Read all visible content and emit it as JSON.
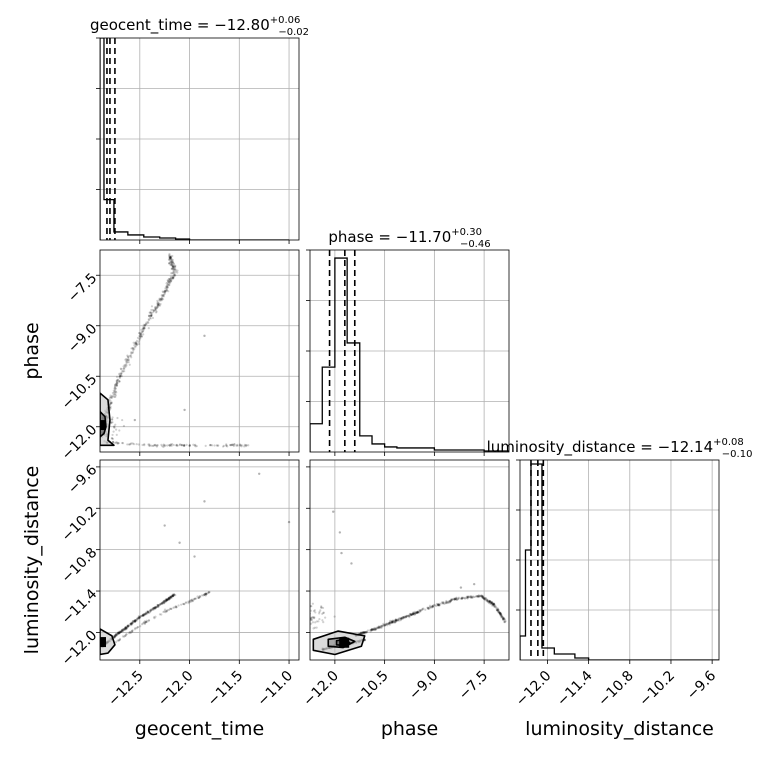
{
  "chart_data": {
    "type": "corner",
    "parameters": [
      "geocent_time",
      "phase",
      "luminosity_distance"
    ],
    "panels": [
      {
        "kind": "hist",
        "param": "geocent_time",
        "title": {
          "prefix": "geocent_time = −12.80",
          "sup": "+0.06",
          "sub": "−0.02"
        },
        "bins": [
          [
            -12.9,
            -12.86,
            1.0
          ],
          [
            -12.86,
            -12.76,
            0.2
          ],
          [
            -12.76,
            -12.62,
            0.04
          ],
          [
            -12.62,
            -12.46,
            0.025
          ],
          [
            -12.46,
            -12.3,
            0.015
          ],
          [
            -12.3,
            -12.14,
            0.01
          ],
          [
            -12.14,
            -12.0,
            0.005
          ],
          [
            -12.0,
            -11.0,
            0.0
          ]
        ],
        "quantiles": [
          -12.83,
          -12.8,
          -12.75
        ],
        "xlim": [
          -12.9,
          -10.9
        ],
        "ylim": [
          0,
          1.0
        ]
      },
      {
        "kind": "hist",
        "param": "phase",
        "title": {
          "prefix": "phase = −11.70",
          "sup": "+0.30",
          "sub": "−0.46"
        },
        "bins": [
          [
            -12.75,
            -12.38,
            0.14
          ],
          [
            -12.38,
            -12.0,
            0.42
          ],
          [
            -12.0,
            -11.63,
            0.96
          ],
          [
            -11.63,
            -11.25,
            0.54
          ],
          [
            -11.25,
            -10.88,
            0.08
          ],
          [
            -10.88,
            -10.5,
            0.04
          ],
          [
            -10.5,
            -10.13,
            0.025
          ],
          [
            -10.13,
            -9.0,
            0.02
          ],
          [
            -9.0,
            -7.5,
            0.01
          ],
          [
            -7.5,
            -6.75,
            0.005
          ]
        ],
        "quantiles": [
          -12.16,
          -11.7,
          -11.4
        ],
        "xlim": [
          -12.75,
          -6.75
        ],
        "ylim": [
          0,
          1.0
        ]
      },
      {
        "kind": "hist",
        "param": "luminosity_distance",
        "title": {
          "prefix": "luminosity_distance = −12.14",
          "sup": "+0.08",
          "sub": "−0.10"
        },
        "bins": [
          [
            -12.4,
            -12.32,
            0.12
          ],
          [
            -12.32,
            -12.24,
            0.55
          ],
          [
            -12.24,
            -12.16,
            0.98
          ],
          [
            -12.16,
            -12.08,
            0.98
          ],
          [
            -12.08,
            -11.9,
            0.06
          ],
          [
            -11.9,
            -11.6,
            0.03
          ],
          [
            -11.6,
            -11.4,
            0.01
          ],
          [
            -11.4,
            -9.5,
            0.0
          ]
        ],
        "quantiles": [
          -12.24,
          -12.14,
          -12.06
        ],
        "xlim": [
          -12.4,
          -9.5
        ],
        "ylim": [
          0,
          1.0
        ]
      }
    ],
    "scatter_panels": [
      {
        "x": "geocent_time",
        "y": "phase",
        "xlim": [
          -12.9,
          -10.9
        ],
        "ylim": [
          -12.75,
          -6.75
        ],
        "features": [
          {
            "shape": "curve",
            "points": [
              [
                -12.86,
                -11.9
              ],
              [
                -12.8,
                -11.3
              ],
              [
                -12.7,
                -10.5
              ],
              [
                -12.55,
                -9.6
              ],
              [
                -12.4,
                -8.8
              ],
              [
                -12.25,
                -8.0
              ],
              [
                -12.15,
                -7.4
              ],
              [
                -12.2,
                -6.9
              ]
            ],
            "count": 420,
            "spread": 0.12
          },
          {
            "shape": "band",
            "points": [
              [
                -12.85,
                -12.45
              ],
              [
                -12.4,
                -12.55
              ],
              [
                -12.0,
                -12.55
              ],
              [
                -11.4,
                -12.55
              ]
            ],
            "count": 120,
            "spread": 0.06
          },
          {
            "shape": "cloud",
            "center": [
              -12.86,
              -12.0
            ],
            "count": 80,
            "spread": 0.35
          }
        ],
        "outliers": [
          [
            -12.05,
            -11.5
          ],
          [
            -11.85,
            -9.3
          ],
          [
            -12.55,
            -11.8
          ]
        ],
        "contours": [
          {
            "level": "outer",
            "points": [
              [
                -12.9,
                -11.0
              ],
              [
                -12.82,
                -11.2
              ],
              [
                -12.8,
                -11.8
              ],
              [
                -12.82,
                -12.4
              ],
              [
                -12.76,
                -12.55
              ],
              [
                -12.9,
                -12.55
              ]
            ]
          },
          {
            "level": "inner",
            "points": [
              [
                -12.9,
                -11.55
              ],
              [
                -12.85,
                -11.7
              ],
              [
                -12.84,
                -12.0
              ],
              [
                -12.86,
                -12.2
              ],
              [
                -12.9,
                -12.3
              ]
            ]
          }
        ],
        "core": [
          -12.89,
          -11.95
        ]
      },
      {
        "x": "geocent_time",
        "y": "luminosity_distance",
        "xlim": [
          -12.9,
          -10.9
        ],
        "ylim": [
          -12.4,
          -9.5
        ],
        "features": [
          {
            "shape": "curve",
            "points": [
              [
                -12.88,
                -12.2
              ],
              [
                -12.7,
                -12.0
              ],
              [
                -12.5,
                -11.78
              ],
              [
                -12.3,
                -11.6
              ],
              [
                -12.15,
                -11.45
              ]
            ],
            "count": 320,
            "spread": 0.05
          },
          {
            "shape": "curve",
            "points": [
              [
                -12.75,
                -12.15
              ],
              [
                -12.5,
                -11.9
              ],
              [
                -12.25,
                -11.7
              ],
              [
                -12.0,
                -11.55
              ],
              [
                -11.8,
                -11.42
              ]
            ],
            "count": 110,
            "spread": 0.05
          }
        ],
        "outliers": [
          [
            -12.1,
            -10.7
          ],
          [
            -11.85,
            -10.1
          ],
          [
            -11.3,
            -9.7
          ],
          [
            -11.0,
            -10.4
          ],
          [
            -12.25,
            -10.45
          ],
          [
            -11.95,
            -10.9
          ]
        ],
        "contours": [
          {
            "level": "outer",
            "points": [
              [
                -12.9,
                -11.95
              ],
              [
                -12.78,
                -12.05
              ],
              [
                -12.75,
                -12.18
              ],
              [
                -12.82,
                -12.3
              ],
              [
                -12.9,
                -12.32
              ]
            ]
          }
        ],
        "core": [
          -12.89,
          -12.14
        ]
      },
      {
        "x": "phase",
        "y": "luminosity_distance",
        "xlim": [
          -12.75,
          -6.75
        ],
        "ylim": [
          -12.4,
          -9.5
        ],
        "features": [
          {
            "shape": "curve",
            "points": [
              [
                -11.4,
                -12.05
              ],
              [
                -10.8,
                -11.95
              ],
              [
                -10.0,
                -11.8
              ],
              [
                -9.2,
                -11.65
              ],
              [
                -8.4,
                -11.52
              ],
              [
                -7.6,
                -11.47
              ],
              [
                -7.2,
                -11.6
              ],
              [
                -6.85,
                -11.85
              ]
            ],
            "count": 480,
            "spread": 0.06
          },
          {
            "shape": "curve",
            "points": [
              [
                -12.4,
                -12.25
              ],
              [
                -12.0,
                -12.2
              ],
              [
                -11.6,
                -12.18
              ],
              [
                -11.1,
                -12.1
              ]
            ],
            "count": 140,
            "spread": 0.05
          },
          {
            "shape": "cloud",
            "center": [
              -12.65,
              -11.8
            ],
            "count": 60,
            "spread": 0.25
          }
        ],
        "outliers": [
          [
            -11.85,
            -10.55
          ],
          [
            -11.8,
            -10.85
          ],
          [
            -12.05,
            -10.25
          ],
          [
            -11.5,
            -11.0
          ],
          [
            -7.8,
            -11.3
          ],
          [
            -8.2,
            -11.35
          ]
        ],
        "contours": [
          {
            "level": "outer",
            "points": [
              [
                -12.65,
                -12.1
              ],
              [
                -11.9,
                -11.98
              ],
              [
                -11.1,
                -12.05
              ],
              [
                -11.2,
                -12.2
              ],
              [
                -12.0,
                -12.32
              ],
              [
                -12.65,
                -12.26
              ]
            ]
          },
          {
            "level": "middle",
            "points": [
              [
                -12.2,
                -12.1
              ],
              [
                -11.7,
                -12.07
              ],
              [
                -11.4,
                -12.13
              ],
              [
                -11.75,
                -12.22
              ],
              [
                -12.2,
                -12.2
              ]
            ]
          },
          {
            "level": "inner",
            "points": [
              [
                -11.95,
                -12.12
              ],
              [
                -11.7,
                -12.1
              ],
              [
                -11.55,
                -12.15
              ],
              [
                -11.72,
                -12.19
              ],
              [
                -11.95,
                -12.18
              ]
            ]
          }
        ],
        "core": [
          -11.72,
          -12.15
        ]
      }
    ],
    "ticks": {
      "geocent_time": {
        "values": [
          -12.5,
          -12.0,
          -11.5,
          -11.0
        ],
        "labels": [
          "−12.5",
          "−12.0",
          "−11.5",
          "−11.0"
        ]
      },
      "phase": {
        "values": [
          -12.0,
          -10.5,
          -9.0,
          -7.5
        ],
        "labels": [
          "−12.0",
          "−10.5",
          "−9.0",
          "−7.5"
        ]
      },
      "luminosity_distance": {
        "values": [
          -12.0,
          -11.4,
          -10.8,
          -10.2,
          -9.6
        ],
        "labels": [
          "−12.0",
          "−11.4",
          "−10.8",
          "−10.2",
          "−9.6"
        ]
      }
    },
    "grid": true,
    "colors": {
      "line": "#000000",
      "points": "#000000",
      "grid": "#b0b0b0",
      "contour_fill_1": "#bfbfbf",
      "contour_fill_2": "#808080"
    }
  }
}
